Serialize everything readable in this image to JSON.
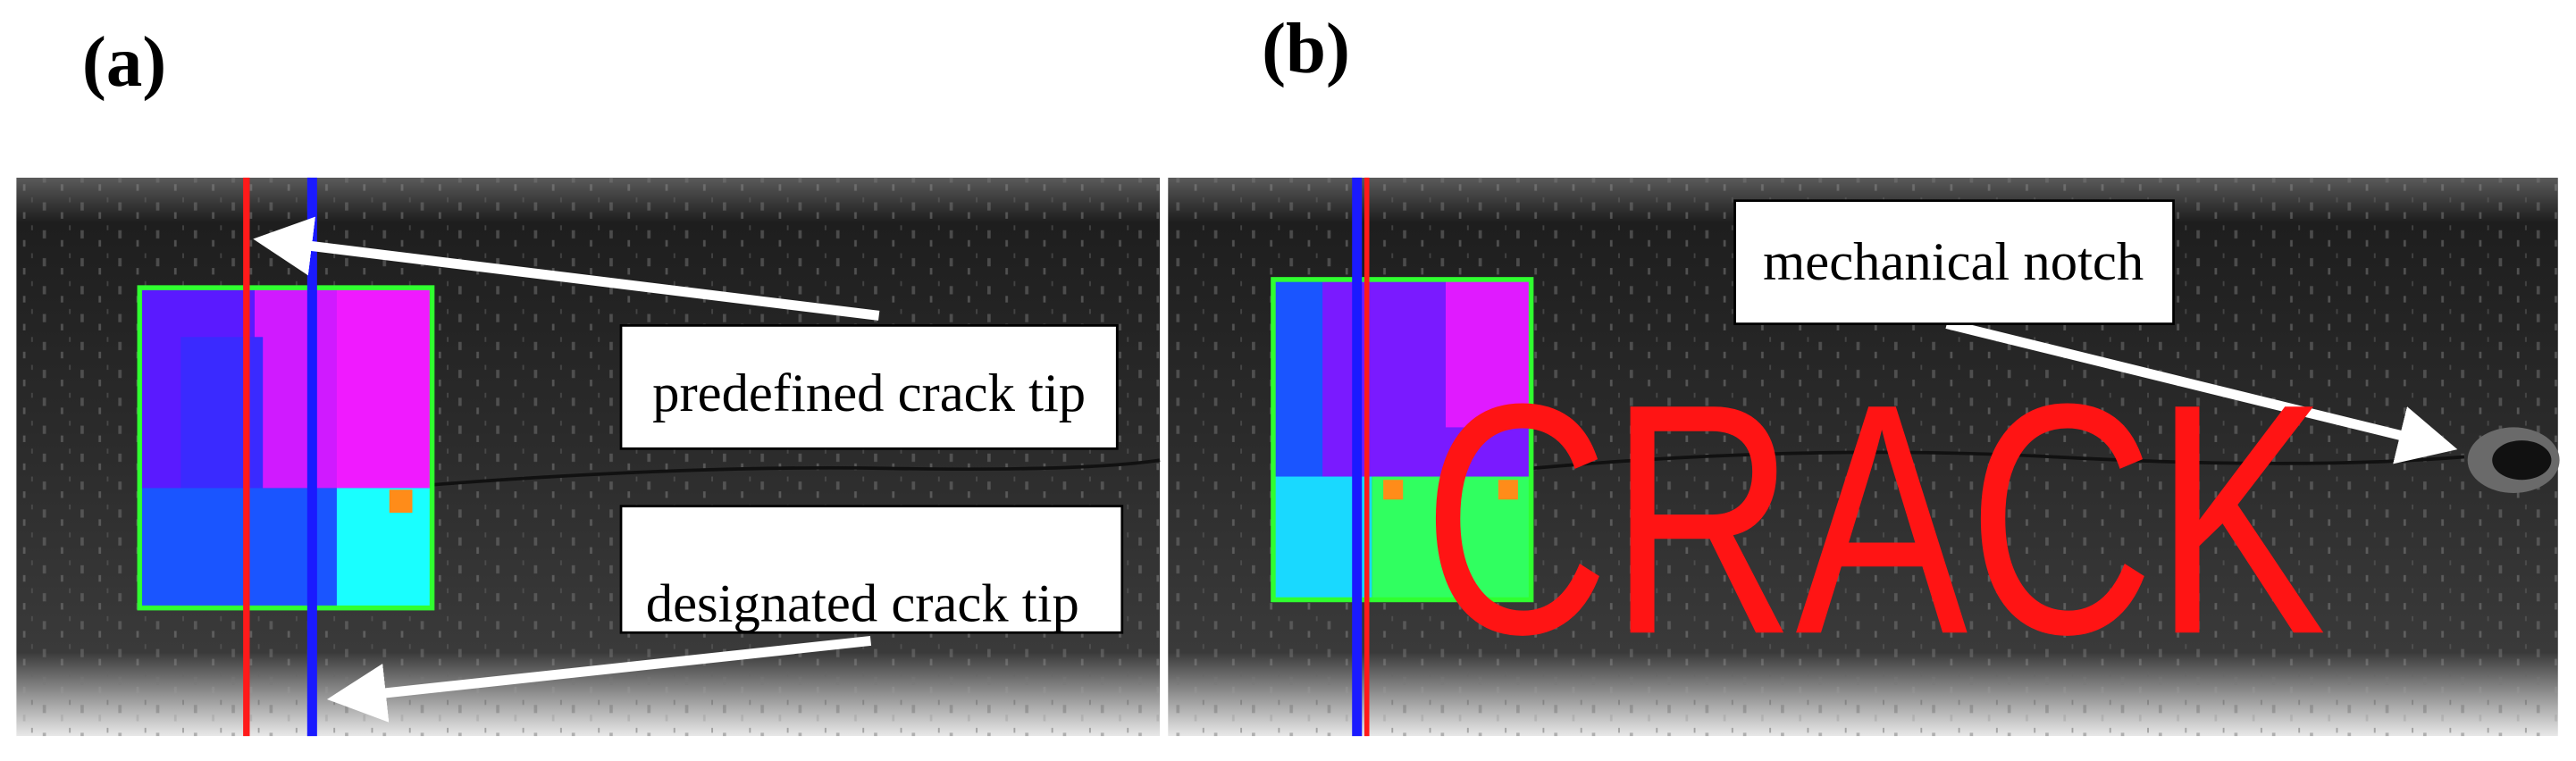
{
  "panels": [
    {
      "label": "(a)",
      "annotations": [
        "predefined crack tip",
        "designated crack tip"
      ]
    },
    {
      "label": "(b)",
      "annotations": [
        "mechanical notch"
      ],
      "overlay_text": "CRACK"
    }
  ]
}
